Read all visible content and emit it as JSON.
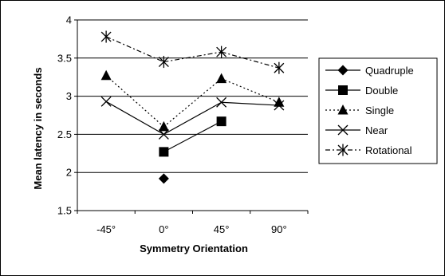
{
  "chart_data": {
    "type": "line",
    "title": "",
    "xlabel": "Symmetry Orientation",
    "ylabel": "Mean latency in seconds",
    "categories": [
      "-45°",
      "0°",
      "45°",
      "90°"
    ],
    "ylim": [
      1.5,
      4
    ],
    "yticks": [
      1.5,
      2,
      2.5,
      3,
      3.5,
      4
    ],
    "ytick_labels": [
      "1.5",
      "2",
      "2.5",
      "3",
      "3.5",
      "4"
    ],
    "grid": "horizontal",
    "legend_position": "right",
    "series": [
      {
        "name": "Quadruple",
        "values": [
          null,
          1.92,
          null,
          null
        ],
        "marker": "diamond",
        "line": "solid"
      },
      {
        "name": "Double",
        "values": [
          null,
          2.27,
          2.67,
          null
        ],
        "marker": "square",
        "line": "solid"
      },
      {
        "name": "Single",
        "values": [
          3.27,
          2.6,
          3.23,
          2.92
        ],
        "marker": "triangle",
        "line": "dotted"
      },
      {
        "name": "Near",
        "values": [
          2.93,
          2.5,
          2.92,
          2.88
        ],
        "marker": "x",
        "line": "solid"
      },
      {
        "name": "Rotational",
        "values": [
          3.78,
          3.45,
          3.58,
          3.37
        ],
        "marker": "star",
        "line": "dashdot"
      }
    ]
  }
}
